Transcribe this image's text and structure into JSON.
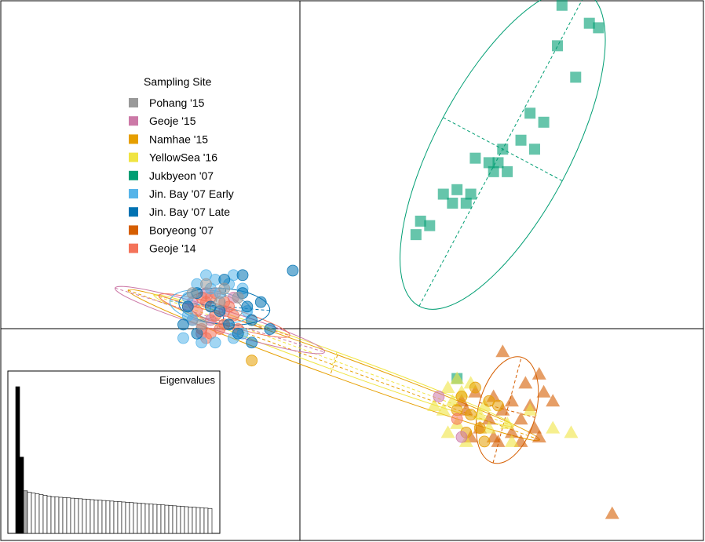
{
  "chart_data": {
    "type": "scatter",
    "description_free": true,
    "legend": {
      "title": "Sampling Site",
      "placement": "upper-left",
      "entries": [
        {
          "label": "Pohang '15",
          "color": "#999999"
        },
        {
          "label": "Geoje '15",
          "color": "#CC79A7"
        },
        {
          "label": "Namhae '15",
          "color": "#E69F00"
        },
        {
          "label": "YellowSea '16",
          "color": "#F0E442"
        },
        {
          "label": "Jukbyeon '07",
          "color": "#009E73"
        },
        {
          "label": "Jin. Bay '07 Early",
          "color": "#56B4E9"
        },
        {
          "label": "Jin. Bay '07 Late",
          "color": "#0072B2"
        },
        {
          "label": "Boryeong '07",
          "color": "#D55E00"
        },
        {
          "label": "Geoje '14",
          "color": "#F4735A"
        }
      ]
    },
    "grid": false,
    "axes_style": "centered cross-hair lines at origin",
    "eigenvalues_inset": {
      "title": "Eigenvalues",
      "placement": "bottom-left",
      "values": [
        10.0,
        5.2,
        2.9,
        2.8,
        2.75,
        2.7,
        2.65,
        2.6,
        2.55,
        2.5,
        2.48,
        2.46,
        2.44,
        2.42,
        2.4,
        2.38,
        2.36,
        2.34,
        2.32,
        2.3,
        2.28,
        2.26,
        2.24,
        2.22,
        2.2,
        2.18,
        2.16,
        2.14,
        2.12,
        2.1,
        2.08,
        2.06,
        2.04,
        2.02,
        2.0,
        1.98,
        1.96,
        1.94,
        1.92,
        1.9,
        1.88,
        1.86,
        1.84,
        1.82,
        1.8,
        1.78,
        1.76,
        1.74,
        1.72,
        1.7
      ],
      "highlighted": [
        0,
        1,
        2
      ],
      "ymax": 10.0
    },
    "groups": [
      {
        "name": "Jukbyeon '07",
        "color": "#009E73",
        "marker": "square",
        "points": [
          [
            2.65,
            3.55
          ],
          [
            2.95,
            3.35
          ],
          [
            3.05,
            3.3
          ],
          [
            2.6,
            3.1
          ],
          [
            2.8,
            2.75
          ],
          [
            2.3,
            2.35
          ],
          [
            2.45,
            2.25
          ],
          [
            2.2,
            2.05
          ],
          [
            2.35,
            1.95
          ],
          [
            2.0,
            1.95
          ],
          [
            1.95,
            1.8
          ],
          [
            1.9,
            1.7
          ],
          [
            1.85,
            1.8
          ],
          [
            2.05,
            1.7
          ],
          [
            1.7,
            1.85
          ],
          [
            1.5,
            1.5
          ],
          [
            1.65,
            1.45
          ],
          [
            1.6,
            1.35
          ],
          [
            1.45,
            1.35
          ],
          [
            1.35,
            1.45
          ],
          [
            1.1,
            1.15
          ],
          [
            1.2,
            1.1
          ],
          [
            1.05,
            1.0
          ],
          [
            1.5,
            -0.6
          ]
        ]
      },
      {
        "name": "Boryeong '07",
        "color": "#D55E00",
        "marker": "triangle",
        "points": [
          [
            2.0,
            -0.3
          ],
          [
            2.4,
            -0.55
          ],
          [
            2.25,
            -0.65
          ],
          [
            2.45,
            -0.75
          ],
          [
            2.55,
            -0.85
          ],
          [
            2.3,
            -0.9
          ],
          [
            2.1,
            -0.85
          ],
          [
            1.9,
            -0.8
          ],
          [
            2.0,
            -0.95
          ],
          [
            2.2,
            -1.05
          ],
          [
            2.35,
            -1.15
          ],
          [
            2.1,
            -1.2
          ],
          [
            1.85,
            -1.05
          ],
          [
            1.75,
            -1.15
          ],
          [
            1.9,
            -1.25
          ],
          [
            1.6,
            -0.95
          ],
          [
            1.7,
            -0.75
          ],
          [
            1.55,
            -0.85
          ],
          [
            1.95,
            -1.3
          ],
          [
            2.2,
            -1.3
          ],
          [
            2.4,
            -1.25
          ],
          [
            1.65,
            -1.25
          ],
          [
            3.2,
            -2.1
          ]
        ]
      },
      {
        "name": "YellowSea '16",
        "color": "#F0E442",
        "marker": "triangle",
        "points": [
          [
            1.35,
            -0.95
          ],
          [
            1.5,
            -1.1
          ],
          [
            1.55,
            -0.75
          ],
          [
            1.65,
            -0.65
          ],
          [
            1.45,
            -0.85
          ],
          [
            1.25,
            -0.9
          ],
          [
            1.75,
            -1.0
          ],
          [
            1.85,
            -1.15
          ],
          [
            2.05,
            -1.1
          ],
          [
            2.3,
            -0.95
          ],
          [
            2.55,
            -1.15
          ],
          [
            2.75,
            -1.2
          ],
          [
            1.4,
            -1.2
          ],
          [
            1.6,
            -1.3
          ],
          [
            1.8,
            -0.9
          ],
          [
            1.5,
            -0.6
          ],
          [
            1.4,
            -0.7
          ],
          [
            2.1,
            -1.3
          ]
        ]
      },
      {
        "name": "Namhae '15",
        "color": "#E69F00",
        "marker": "circle",
        "points": [
          [
            -0.75,
            -0.4
          ],
          [
            1.7,
            -0.7
          ],
          [
            1.85,
            -0.85
          ],
          [
            1.65,
            -1.0
          ],
          [
            1.75,
            -1.15
          ],
          [
            1.5,
            -0.95
          ],
          [
            1.6,
            -1.2
          ],
          [
            1.8,
            -1.3
          ],
          [
            1.55,
            -0.8
          ],
          [
            1.95,
            -0.9
          ]
        ]
      },
      {
        "name": "Geoje '15",
        "color": "#CC79A7",
        "marker": "circle",
        "points": [
          [
            1.3,
            -0.8
          ],
          [
            1.55,
            -1.25
          ],
          [
            -1.25,
            0.35
          ],
          [
            -1.4,
            0.25
          ],
          [
            -1.2,
            0.05
          ],
          [
            -0.95,
            0.3
          ],
          [
            -1.05,
            0.15
          ],
          [
            -1.3,
            -0.1
          ],
          [
            -1.45,
            0.2
          ]
        ]
      },
      {
        "name": "Geoje '14",
        "color": "#F4735A",
        "marker": "circle",
        "points": [
          [
            1.5,
            -1.05
          ],
          [
            -1.25,
            0.25
          ],
          [
            -1.15,
            0.1
          ],
          [
            -1.05,
            0.0
          ],
          [
            -1.3,
            -0.05
          ],
          [
            -1.35,
            0.15
          ],
          [
            -1.2,
            0.3
          ],
          [
            -1.0,
            0.2
          ],
          [
            -0.95,
            0.1
          ],
          [
            -1.1,
            -0.05
          ],
          [
            -1.25,
            -0.15
          ],
          [
            -1.4,
            0.05
          ],
          [
            -1.15,
            0.35
          ],
          [
            -1.05,
            0.25
          ],
          [
            -0.9,
            -0.05
          ],
          [
            -1.3,
            0.3
          ],
          [
            -1.2,
            -0.1
          ]
        ]
      },
      {
        "name": "Jin. Bay '07 Early",
        "color": "#56B4E9",
        "marker": "circle",
        "points": [
          [
            -0.95,
            0.55
          ],
          [
            -1.15,
            0.5
          ],
          [
            -1.35,
            0.45
          ],
          [
            -1.45,
            0.3
          ],
          [
            -0.85,
            0.4
          ],
          [
            -1.0,
            0.45
          ],
          [
            -1.2,
            0.4
          ],
          [
            -1.45,
            0.1
          ],
          [
            -1.4,
            0.05
          ],
          [
            -1.5,
            -0.15
          ],
          [
            -1.3,
            -0.2
          ],
          [
            -1.15,
            -0.2
          ],
          [
            -0.95,
            -0.15
          ],
          [
            -0.85,
            -0.1
          ],
          [
            -0.8,
            0.15
          ],
          [
            -1.1,
            0.35
          ],
          [
            -1.25,
            0.55
          ]
        ]
      },
      {
        "name": "Jin. Bay '07 Late",
        "color": "#0072B2",
        "marker": "circle",
        "points": [
          [
            -0.3,
            0.6
          ],
          [
            -1.05,
            0.5
          ],
          [
            -0.85,
            0.35
          ],
          [
            -0.8,
            0.2
          ],
          [
            -0.75,
            0.05
          ],
          [
            -0.9,
            -0.1
          ],
          [
            -1.0,
            0.0
          ],
          [
            -1.1,
            0.15
          ],
          [
            -1.2,
            0.2
          ],
          [
            -1.35,
            0.35
          ],
          [
            -1.45,
            0.2
          ],
          [
            -1.5,
            0.0
          ],
          [
            -1.35,
            -0.1
          ],
          [
            -0.75,
            -0.2
          ],
          [
            -0.55,
            -0.05
          ],
          [
            -0.85,
            0.55
          ],
          [
            -0.65,
            0.25
          ]
        ]
      },
      {
        "name": "Pohang '15",
        "color": "#999999",
        "marker": "circle",
        "points": [
          [
            -1.25,
            0.45
          ],
          [
            -1.4,
            0.35
          ],
          [
            -1.05,
            0.4
          ],
          [
            -0.9,
            0.3
          ],
          [
            -1.1,
            0.25
          ],
          [
            -1.3,
            0.0
          ]
        ]
      }
    ],
    "ellipses": [
      {
        "name": "Jukbyeon '07",
        "color": "#009E73",
        "cx": 2.0,
        "cy": 1.95,
        "rx": 1.95,
        "ry": 0.75,
        "angle": 62
      },
      {
        "name": "Boryeong '07",
        "color": "#D55E00",
        "cx": 2.05,
        "cy": -0.95,
        "rx": 0.6,
        "ry": 0.32,
        "angle": 75
      },
      {
        "name": "Namhae '15",
        "color": "#E69F00",
        "cx": 0.15,
        "cy": -0.45,
        "rx": 2.4,
        "ry": 0.12,
        "angle": -20
      },
      {
        "name": "YellowSea '16",
        "color": "#F0E442",
        "cx": 0.15,
        "cy": -0.4,
        "rx": 2.1,
        "ry": 0.1,
        "angle": -20
      },
      {
        "name": "Geoje '15",
        "color": "#CC79A7",
        "cx": -1.1,
        "cy": 0.05,
        "rx": 1.2,
        "ry": 0.12,
        "angle": -17
      },
      {
        "name": "Geoje '14",
        "color": "#F4735A",
        "cx": -1.05,
        "cy": 0.1,
        "rx": 0.75,
        "ry": 0.1,
        "angle": -17
      },
      {
        "name": "Jin. Bay '07 Early",
        "color": "#56B4E9",
        "cx": -1.2,
        "cy": 0.2,
        "rx": 0.45,
        "ry": 0.18,
        "angle": -8
      },
      {
        "name": "Jin. Bay '07 Late",
        "color": "#0072B2",
        "cx": -1.05,
        "cy": 0.2,
        "rx": 0.5,
        "ry": 0.2,
        "angle": -5
      },
      {
        "name": "Pohang '15",
        "color": "#999999",
        "cx": -1.15,
        "cy": 0.2,
        "rx": 0.3,
        "ry": 0.15,
        "angle": -10
      }
    ],
    "xlim": [
      -3.5,
      4.2
    ],
    "ylim": [
      -2.4,
      3.6
    ]
  }
}
